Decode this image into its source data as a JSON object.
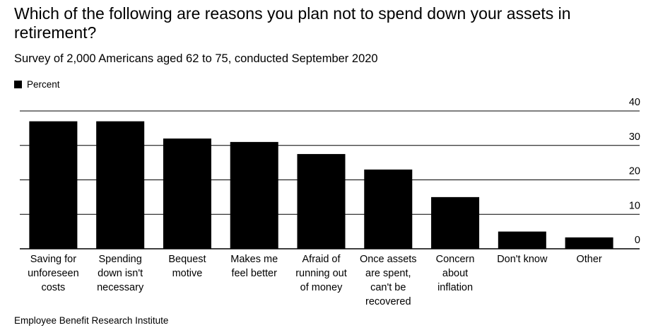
{
  "title": "Which of the following are reasons you plan not to spend down your assets in retirement?",
  "subtitle": "Survey of 2,000 Americans aged 62 to 75, conducted September 2020",
  "source": "Employee Benefit Research Institute",
  "colors": {
    "bar": "#000000",
    "grid": "#000000",
    "background": "#ffffff"
  },
  "chart_data": {
    "type": "bar",
    "title": "Which of the following are reasons you plan not to spend down your assets in retirement?",
    "subtitle": "Survey of 2,000 Americans aged 62 to 75, conducted September 2020",
    "legend": {
      "entries": [
        "Percent"
      ],
      "placement": "top-left"
    },
    "categories": [
      "Saving for unforeseen costs",
      "Spending down isn't necessary",
      "Bequest motive",
      "Makes me feel better",
      "Afraid of running out of money",
      "Once assets are spent, can't be recovered",
      "Concern about inflation",
      "Don't know",
      "Other"
    ],
    "category_lines": [
      [
        "Saving for",
        "unforeseen",
        "costs"
      ],
      [
        "Spending",
        "down isn't",
        "necessary"
      ],
      [
        "Bequest",
        "motive"
      ],
      [
        "Makes me",
        "feel better"
      ],
      [
        "Afraid of",
        "running out",
        "of money"
      ],
      [
        "Once assets",
        "are spent,",
        "can't be",
        "recovered"
      ],
      [
        "Concern",
        "about",
        "inflation"
      ],
      [
        "Don't know"
      ],
      [
        "Other"
      ]
    ],
    "series": [
      {
        "name": "Percent",
        "values": [
          37,
          37,
          32,
          31,
          27.5,
          23,
          15,
          5,
          3.3
        ]
      }
    ],
    "yticks": [
      0,
      10,
      20,
      30,
      40
    ],
    "ylim": [
      0,
      40
    ],
    "y_axis_side": "right",
    "grid": true
  }
}
